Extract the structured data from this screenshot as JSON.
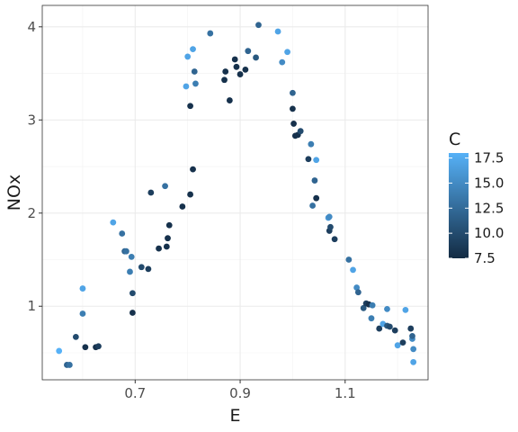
{
  "chart_data": {
    "type": "scatter",
    "xlabel": "E",
    "ylabel": "NOx",
    "xlim": [
      0.523,
      1.258
    ],
    "ylim": [
      0.21,
      4.23
    ],
    "x_ticks": [
      0.7,
      0.9,
      1.1
    ],
    "x_tick_labels": [
      "0.7",
      "0.9",
      "1.1"
    ],
    "y_ticks": [
      1,
      2,
      3,
      4
    ],
    "y_tick_labels": [
      "1",
      "2",
      "3",
      "4"
    ],
    "grid": true,
    "color_legend": {
      "title": "C",
      "position": "right",
      "range": [
        7.5,
        18
      ],
      "ticks": [
        7.5,
        10.0,
        12.5,
        15.0,
        17.5
      ],
      "tick_labels": [
        "7.5",
        "10.0",
        "12.5",
        "15.0",
        "17.5"
      ],
      "low_color": "#132B43",
      "high_color": "#56B1F7"
    },
    "points": [
      [
        0.555,
        0.52,
        18
      ],
      [
        0.57,
        0.37,
        12
      ],
      [
        0.575,
        0.37,
        13
      ],
      [
        0.587,
        0.67,
        10
      ],
      [
        0.6,
        1.19,
        17
      ],
      [
        0.6,
        0.92,
        14
      ],
      [
        0.605,
        0.56,
        8
      ],
      [
        0.625,
        0.56,
        8
      ],
      [
        0.63,
        0.57,
        9
      ],
      [
        0.658,
        1.9,
        17
      ],
      [
        0.675,
        1.78,
        13
      ],
      [
        0.68,
        1.59,
        12
      ],
      [
        0.683,
        1.59,
        13
      ],
      [
        0.69,
        1.37,
        14
      ],
      [
        0.693,
        1.53,
        14
      ],
      [
        0.695,
        1.14,
        10
      ],
      [
        0.695,
        0.93,
        8
      ],
      [
        0.712,
        1.42,
        10
      ],
      [
        0.725,
        1.4,
        9
      ],
      [
        0.73,
        2.22,
        9
      ],
      [
        0.745,
        1.62,
        8
      ],
      [
        0.757,
        2.29,
        13
      ],
      [
        0.76,
        1.64,
        8
      ],
      [
        0.762,
        1.73,
        8
      ],
      [
        0.765,
        1.87,
        8
      ],
      [
        0.79,
        2.07,
        8
      ],
      [
        0.797,
        3.36,
        17
      ],
      [
        0.8,
        3.68,
        17
      ],
      [
        0.805,
        3.15,
        8
      ],
      [
        0.805,
        2.2,
        8
      ],
      [
        0.81,
        3.76,
        17
      ],
      [
        0.81,
        2.47,
        8
      ],
      [
        0.813,
        3.52,
        12
      ],
      [
        0.815,
        3.39,
        14
      ],
      [
        0.843,
        3.93,
        13
      ],
      [
        0.87,
        3.43,
        8
      ],
      [
        0.872,
        3.52,
        8
      ],
      [
        0.88,
        3.21,
        8
      ],
      [
        0.89,
        3.65,
        8
      ],
      [
        0.893,
        3.57,
        8
      ],
      [
        0.9,
        3.49,
        8
      ],
      [
        0.91,
        3.54,
        8
      ],
      [
        0.915,
        3.74,
        12
      ],
      [
        0.93,
        3.67,
        11
      ],
      [
        0.935,
        4.02,
        12
      ],
      [
        0.972,
        3.95,
        17
      ],
      [
        0.98,
        3.62,
        15
      ],
      [
        0.99,
        3.73,
        17
      ],
      [
        1.0,
        3.29,
        12
      ],
      [
        1.0,
        3.12,
        8
      ],
      [
        1.002,
        2.96,
        8
      ],
      [
        1.005,
        2.83,
        8
      ],
      [
        1.01,
        2.84,
        8
      ],
      [
        1.015,
        2.88,
        10
      ],
      [
        1.03,
        2.58,
        9
      ],
      [
        1.035,
        2.74,
        14
      ],
      [
        1.038,
        2.08,
        13
      ],
      [
        1.042,
        2.35,
        12
      ],
      [
        1.045,
        2.57,
        17
      ],
      [
        1.045,
        2.16,
        8
      ],
      [
        1.068,
        1.95,
        16
      ],
      [
        1.07,
        1.96,
        15
      ],
      [
        1.07,
        1.81,
        9
      ],
      [
        1.072,
        1.85,
        10
      ],
      [
        1.08,
        1.72,
        9
      ],
      [
        1.107,
        1.5,
        13
      ],
      [
        1.115,
        1.39,
        17
      ],
      [
        1.122,
        1.2,
        15
      ],
      [
        1.125,
        1.15,
        12
      ],
      [
        1.135,
        0.98,
        11
      ],
      [
        1.14,
        1.03,
        9
      ],
      [
        1.145,
        1.02,
        8
      ],
      [
        1.15,
        0.87,
        14
      ],
      [
        1.152,
        1.01,
        14
      ],
      [
        1.165,
        0.76,
        9
      ],
      [
        1.172,
        0.81,
        17
      ],
      [
        1.18,
        0.97,
        15
      ],
      [
        1.18,
        0.79,
        11
      ],
      [
        1.185,
        0.78,
        10
      ],
      [
        1.195,
        0.74,
        9
      ],
      [
        1.2,
        0.58,
        17
      ],
      [
        1.21,
        0.61,
        9
      ],
      [
        1.215,
        0.96,
        17
      ],
      [
        1.225,
        0.76,
        9
      ],
      [
        1.228,
        0.65,
        15
      ],
      [
        1.228,
        0.68,
        12
      ],
      [
        1.23,
        0.54,
        15
      ],
      [
        1.23,
        0.4,
        17
      ]
    ]
  }
}
